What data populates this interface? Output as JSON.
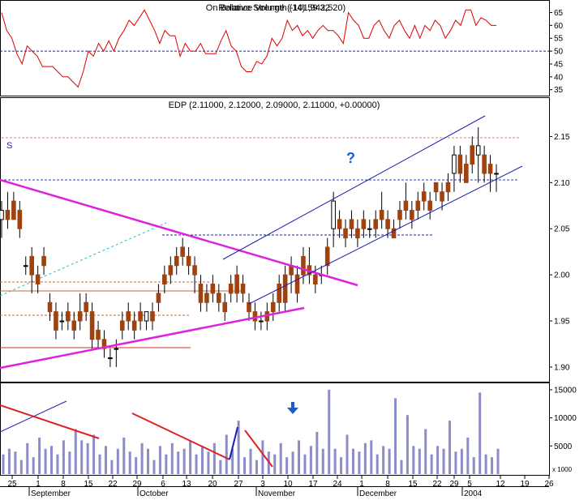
{
  "rsi_panel": {
    "title": "Relative Strength (14) 59.32",
    "title_overlay": "On Balance Volume (-101,942,520)",
    "y_ticks": [
      "65",
      "60",
      "55",
      "50",
      "45",
      "40",
      "35"
    ],
    "ref_level": 50
  },
  "price_panel": {
    "title": "EDP (2.11000, 2.12000, 2.09000, 2.11000, +0.00000)",
    "y_ticks": [
      "2.15",
      "2.10",
      "2.05",
      "2.00",
      "1.95",
      "1.90"
    ],
    "annotation_s": "S",
    "annotation_q": "?"
  },
  "volume_panel": {
    "y_ticks": [
      "15000",
      "10000",
      "5000"
    ],
    "scale_label": "x 1000"
  },
  "x_axis": {
    "day_labels": [
      "25",
      "1",
      "8",
      "15",
      "22",
      "29",
      "6",
      "13",
      "20",
      "27",
      "3",
      "10",
      "17",
      "24",
      "1",
      "8",
      "15",
      "22",
      "29",
      "5",
      "12",
      "19",
      "26"
    ],
    "month_labels": [
      "September",
      "October",
      "November",
      "December",
      "2004"
    ]
  },
  "colors": {
    "rsi_line": "#dd0000",
    "up_candle": "#ffffff",
    "down_candle": "#a0420f",
    "volume_bar": "#8c8cc8",
    "trendline_magenta": "#dd22dd",
    "channel_blue": "#1c1cb0",
    "ref_dash": "#2020a0",
    "grid": "#000000"
  },
  "chart_data": [
    {
      "type": "line",
      "name": "rsi",
      "ylim": [
        33,
        68
      ],
      "ref_line": 50,
      "values": [
        65,
        58,
        55,
        49,
        45,
        52,
        50,
        48,
        44,
        44,
        44,
        42,
        40,
        40,
        38,
        36,
        42,
        50,
        48,
        53,
        50,
        54,
        50,
        55,
        58,
        62,
        60,
        63,
        66,
        62,
        58,
        53,
        58,
        56,
        56,
        48,
        53,
        50,
        50,
        53,
        49,
        49,
        49,
        54,
        58,
        52,
        50,
        44,
        42,
        42,
        46,
        45,
        48,
        55,
        52,
        55,
        62,
        58,
        60,
        56,
        58,
        55,
        58,
        60,
        58,
        58,
        56,
        53,
        65,
        62,
        60,
        55,
        55,
        60,
        62,
        58,
        55,
        60,
        62,
        58,
        55,
        60,
        55,
        60,
        58,
        62,
        60,
        55,
        58,
        62,
        60,
        66,
        66,
        60,
        63,
        62,
        60,
        60
      ]
    },
    {
      "type": "candlestick",
      "name": "EDP",
      "ylim": [
        1.885,
        2.175
      ],
      "values": [
        [
          2.06,
          2.08,
          2.04,
          2.07
        ],
        [
          2.07,
          2.09,
          2.05,
          2.06
        ],
        [
          2.08,
          2.09,
          2.06,
          2.06
        ],
        [
          2.07,
          2.08,
          2.04,
          2.05
        ],
        [
          2.01,
          2.02,
          2.0,
          2.01
        ],
        [
          2.02,
          2.03,
          1.98,
          2.0
        ],
        [
          2.0,
          2.01,
          1.98,
          1.99
        ],
        [
          2.02,
          2.03,
          2.0,
          2.01
        ],
        [
          1.97,
          1.98,
          1.95,
          1.96
        ],
        [
          1.96,
          1.97,
          1.93,
          1.94
        ],
        [
          1.95,
          1.96,
          1.94,
          1.95
        ],
        [
          1.96,
          1.97,
          1.94,
          1.95
        ],
        [
          1.95,
          1.96,
          1.93,
          1.94
        ],
        [
          1.96,
          1.98,
          1.94,
          1.95
        ],
        [
          1.97,
          1.98,
          1.95,
          1.96
        ],
        [
          1.96,
          1.97,
          1.92,
          1.93
        ],
        [
          1.94,
          1.95,
          1.92,
          1.93
        ],
        [
          1.93,
          1.94,
          1.91,
          1.92
        ],
        [
          1.91,
          1.92,
          1.9,
          1.91
        ],
        [
          1.92,
          1.93,
          1.9,
          1.92
        ],
        [
          1.95,
          1.96,
          1.93,
          1.94
        ],
        [
          1.96,
          1.97,
          1.94,
          1.95
        ],
        [
          1.95,
          1.96,
          1.93,
          1.94
        ],
        [
          1.96,
          1.97,
          1.94,
          1.95
        ],
        [
          1.95,
          1.96,
          1.94,
          1.96
        ],
        [
          1.96,
          1.97,
          1.94,
          1.95
        ],
        [
          1.98,
          1.99,
          1.96,
          1.97
        ],
        [
          2.0,
          2.01,
          1.98,
          1.99
        ],
        [
          2.01,
          2.02,
          1.99,
          2.0
        ],
        [
          2.02,
          2.03,
          2.0,
          2.01
        ],
        [
          2.03,
          2.04,
          2.01,
          2.02
        ],
        [
          2.02,
          2.03,
          2.0,
          2.01
        ],
        [
          2.01,
          2.02,
          1.98,
          2.0
        ],
        [
          1.99,
          2.0,
          1.96,
          1.97
        ],
        [
          1.98,
          1.99,
          1.96,
          1.97
        ],
        [
          1.99,
          2.0,
          1.97,
          1.98
        ],
        [
          1.98,
          1.99,
          1.96,
          1.97
        ],
        [
          1.97,
          1.98,
          1.95,
          1.96
        ],
        [
          1.99,
          2.0,
          1.97,
          1.98
        ],
        [
          2.0,
          2.01,
          1.97,
          1.98
        ],
        [
          1.99,
          2.0,
          1.97,
          1.98
        ],
        [
          1.97,
          1.98,
          1.95,
          1.96
        ],
        [
          1.96,
          1.97,
          1.94,
          1.95
        ],
        [
          1.95,
          1.96,
          1.94,
          1.95
        ],
        [
          1.96,
          1.97,
          1.94,
          1.95
        ],
        [
          1.97,
          1.98,
          1.95,
          1.96
        ],
        [
          1.99,
          2.0,
          1.96,
          1.97
        ],
        [
          2.0,
          2.01,
          1.96,
          1.97
        ],
        [
          2.01,
          2.02,
          1.98,
          2.0
        ],
        [
          2.0,
          2.01,
          1.97,
          1.98
        ],
        [
          2.02,
          2.03,
          1.99,
          2.0
        ],
        [
          2.01,
          2.03,
          1.99,
          2.0
        ],
        [
          2.0,
          2.01,
          1.98,
          1.99
        ],
        [
          2.0,
          2.01,
          1.99,
          2.0
        ],
        [
          2.03,
          2.04,
          2.0,
          2.01
        ],
        [
          2.05,
          2.09,
          2.03,
          2.08
        ],
        [
          2.06,
          2.07,
          2.04,
          2.05
        ],
        [
          2.05,
          2.06,
          2.03,
          2.04
        ],
        [
          2.06,
          2.07,
          2.04,
          2.05
        ],
        [
          2.05,
          2.06,
          2.03,
          2.04
        ],
        [
          2.06,
          2.07,
          2.04,
          2.05
        ],
        [
          2.05,
          2.06,
          2.04,
          2.05
        ],
        [
          2.06,
          2.07,
          2.04,
          2.05
        ],
        [
          2.07,
          2.09,
          2.05,
          2.06
        ],
        [
          2.06,
          2.07,
          2.04,
          2.05
        ],
        [
          2.05,
          2.06,
          2.04,
          2.04
        ],
        [
          2.07,
          2.08,
          2.05,
          2.06
        ],
        [
          2.08,
          2.1,
          2.06,
          2.07
        ],
        [
          2.07,
          2.08,
          2.05,
          2.06
        ],
        [
          2.08,
          2.09,
          2.06,
          2.07
        ],
        [
          2.09,
          2.1,
          2.07,
          2.08
        ],
        [
          2.08,
          2.09,
          2.06,
          2.07
        ],
        [
          2.1,
          2.1,
          2.08,
          2.09
        ],
        [
          2.09,
          2.1,
          2.07,
          2.08
        ],
        [
          2.1,
          2.11,
          2.08,
          2.09
        ],
        [
          2.11,
          2.14,
          2.09,
          2.13
        ],
        [
          2.13,
          2.14,
          2.1,
          2.11
        ],
        [
          2.12,
          2.13,
          2.1,
          2.1
        ],
        [
          2.14,
          2.15,
          2.11,
          2.12
        ],
        [
          2.13,
          2.16,
          2.1,
          2.14
        ],
        [
          2.13,
          2.14,
          2.1,
          2.11
        ],
        [
          2.12,
          2.13,
          2.09,
          2.11
        ],
        [
          2.11,
          2.12,
          2.09,
          2.11
        ]
      ]
    },
    {
      "type": "bar",
      "name": "volume",
      "ylim": [
        0,
        16000
      ],
      "values": [
        3500,
        4500,
        4000,
        2500,
        5500,
        3000,
        6500,
        4500,
        5000,
        3500,
        6000,
        4000,
        8000,
        6000,
        5500,
        7000,
        3500,
        5000,
        2500,
        4500,
        6500,
        4000,
        3000,
        5500,
        4500,
        2500,
        5000,
        3500,
        5500,
        4000,
        4500,
        6000,
        3500,
        5000,
        4000,
        5500,
        2500,
        7000,
        4500,
        9500,
        3000,
        4500,
        2500,
        6000,
        4000,
        3500,
        5500,
        3000,
        4000,
        6000,
        3500,
        5000,
        7500,
        4500,
        15000,
        4500,
        3000,
        7000,
        4500,
        4000,
        5500,
        6000,
        3500,
        5000,
        4500,
        13500,
        2500,
        10500,
        5000,
        4500,
        8000,
        3500,
        5000,
        4500,
        9500,
        4000,
        4500,
        6500,
        3000,
        14500,
        3500,
        3000,
        4500
      ]
    }
  ]
}
